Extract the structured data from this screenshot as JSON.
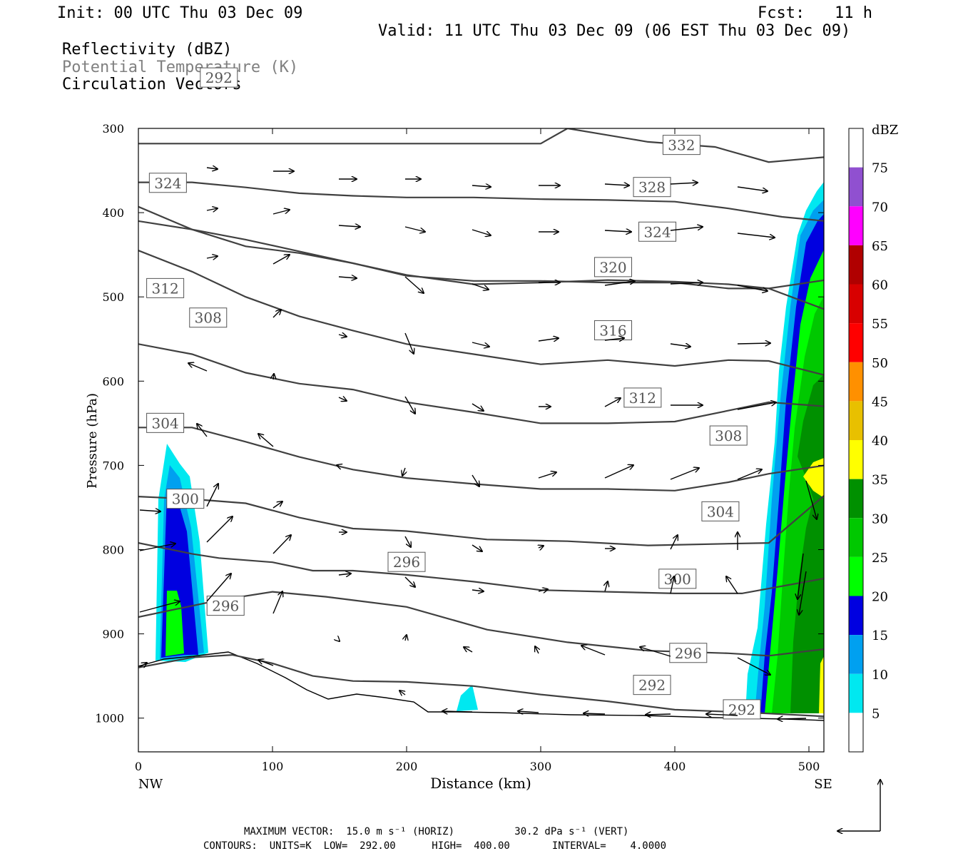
{
  "header": {
    "init": "Init: 00 UTC Thu 03 Dec 09",
    "fcst_label": "Fcst:",
    "fcst_value": "11 h",
    "valid": "Valid: 11 UTC Thu 03 Dec 09 (06 EST Thu 03 Dec 09)",
    "fields": [
      {
        "label": "Reflectivity (dBZ)",
        "color": "#000000"
      },
      {
        "label": "Potential Temperature (K)",
        "color": "#808080"
      },
      {
        "label": "Circulation Vectors",
        "color": "#000000"
      }
    ]
  },
  "chart_data": {
    "type": "cross-section contour",
    "xlabel": "Distance (km)",
    "ylabel": "Pressure (hPa)",
    "xlim": [
      0,
      512
    ],
    "ylim": [
      1040,
      300
    ],
    "x_ticks": [
      "0",
      "100",
      "200",
      "300",
      "400",
      "500"
    ],
    "y_ticks": [
      "300",
      "400",
      "500",
      "600",
      "700",
      "800",
      "900",
      "1000"
    ],
    "x_end_labels": {
      "left": "NW",
      "right": "SE"
    },
    "colorbar": {
      "title": "dBZ",
      "levels": [
        "5",
        "10",
        "15",
        "20",
        "25",
        "30",
        "35",
        "40",
        "45",
        "50",
        "55",
        "60",
        "65",
        "70",
        "75"
      ],
      "colors": [
        "#ffffff",
        "#00e8f0",
        "#00a0f0",
        "#0000e0",
        "#00ff00",
        "#00c800",
        "#009000",
        "#ffff00",
        "#e8c000",
        "#ff9000",
        "#ff0000",
        "#d80000",
        "#b00000",
        "#ff00ff",
        "#9050d0",
        "#ffffff"
      ]
    },
    "theta_contours": [
      {
        "label": "292",
        "points": [
          [
            0,
            940
          ],
          [
            40,
            928
          ],
          [
            70,
            925
          ],
          [
            100,
            935
          ],
          [
            130,
            950
          ],
          [
            160,
            956
          ],
          [
            200,
            957
          ],
          [
            250,
            962
          ],
          [
            300,
            972
          ],
          [
            350,
            980
          ],
          [
            400,
            990
          ],
          [
            450,
            993
          ],
          [
            512,
            998
          ]
        ]
      },
      {
        "label": "296",
        "points": [
          [
            0,
            880
          ],
          [
            30,
            870
          ],
          [
            60,
            860
          ],
          [
            100,
            850
          ],
          [
            140,
            856
          ],
          [
            200,
            868
          ],
          [
            260,
            895
          ],
          [
            320,
            910
          ],
          [
            380,
            920
          ],
          [
            440,
            923
          ],
          [
            470,
            926
          ],
          [
            512,
            918
          ]
        ]
      },
      {
        "label": "300",
        "points": [
          [
            0,
            792
          ],
          [
            40,
            805
          ],
          [
            60,
            810
          ],
          [
            100,
            815
          ],
          [
            130,
            825
          ],
          [
            160,
            825
          ],
          [
            200,
            830
          ],
          [
            250,
            838
          ],
          [
            300,
            848
          ],
          [
            350,
            850
          ],
          [
            400,
            852
          ],
          [
            450,
            852
          ],
          [
            512,
            834
          ]
        ]
      },
      {
        "label": "304",
        "points": [
          [
            0,
            737
          ],
          [
            40,
            740
          ],
          [
            80,
            745
          ],
          [
            120,
            762
          ],
          [
            160,
            775
          ],
          [
            200,
            778
          ],
          [
            260,
            788
          ],
          [
            320,
            790
          ],
          [
            380,
            795
          ],
          [
            440,
            793
          ],
          [
            470,
            792
          ],
          [
            512,
            735
          ]
        ]
      },
      {
        "label": "308",
        "points": [
          [
            0,
            655
          ],
          [
            40,
            655
          ],
          [
            80,
            672
          ],
          [
            120,
            690
          ],
          [
            160,
            705
          ],
          [
            200,
            715
          ],
          [
            250,
            722
          ],
          [
            300,
            728
          ],
          [
            350,
            728
          ],
          [
            400,
            730
          ],
          [
            440,
            720
          ],
          [
            470,
            710
          ],
          [
            512,
            700
          ]
        ]
      },
      {
        "label": "312",
        "points": [
          [
            0,
            556
          ],
          [
            40,
            568
          ],
          [
            80,
            590
          ],
          [
            120,
            603
          ],
          [
            160,
            610
          ],
          [
            200,
            625
          ],
          [
            250,
            637
          ],
          [
            300,
            650
          ],
          [
            350,
            650
          ],
          [
            400,
            648
          ],
          [
            440,
            635
          ],
          [
            470,
            625
          ],
          [
            512,
            630
          ]
        ]
      },
      {
        "label": "316",
        "points": [
          [
            0,
            445
          ],
          [
            40,
            470
          ],
          [
            80,
            500
          ],
          [
            120,
            523
          ],
          [
            160,
            540
          ],
          [
            200,
            556
          ],
          [
            250,
            568
          ],
          [
            300,
            580
          ],
          [
            350,
            575
          ],
          [
            400,
            582
          ],
          [
            440,
            575
          ],
          [
            470,
            576
          ],
          [
            512,
            593
          ]
        ]
      },
      {
        "label": "320",
        "points": [
          [
            0,
            393
          ],
          [
            40,
            420
          ],
          [
            80,
            440
          ],
          [
            120,
            448
          ],
          [
            160,
            460
          ],
          [
            200,
            475
          ],
          [
            250,
            481
          ],
          [
            300,
            481
          ],
          [
            350,
            483
          ],
          [
            400,
            483
          ],
          [
            440,
            490
          ],
          [
            470,
            490
          ],
          [
            512,
            515
          ]
        ]
      },
      {
        "label": "324",
        "points": [
          [
            0,
            410
          ],
          [
            40,
            420
          ],
          [
            80,
            432
          ],
          [
            120,
            446
          ],
          [
            160,
            460
          ],
          [
            200,
            474
          ],
          [
            250,
            485
          ],
          [
            300,
            483
          ],
          [
            350,
            480
          ],
          [
            400,
            482
          ],
          [
            440,
            485
          ],
          [
            470,
            490
          ],
          [
            512,
            480
          ]
        ]
      },
      {
        "label": "328",
        "points": [
          [
            0,
            364
          ],
          [
            40,
            364
          ],
          [
            80,
            370
          ],
          [
            120,
            377
          ],
          [
            160,
            380
          ],
          [
            200,
            382
          ],
          [
            250,
            382
          ],
          [
            300,
            384
          ],
          [
            350,
            385
          ],
          [
            400,
            387
          ],
          [
            440,
            395
          ],
          [
            480,
            405
          ],
          [
            512,
            410
          ]
        ]
      },
      {
        "label": "332",
        "points": [
          [
            0,
            318
          ],
          [
            60,
            318
          ],
          [
            120,
            318
          ],
          [
            200,
            318
          ],
          [
            300,
            318
          ],
          [
            320,
            300
          ],
          [
            380,
            316
          ],
          [
            430,
            322
          ],
          [
            470,
            340
          ],
          [
            512,
            334
          ]
        ]
      }
    ],
    "contour_info": {
      "units": "K",
      "low": "292.00",
      "high": "400.00",
      "interval": "4.0000"
    },
    "max_vector": {
      "horiz": "15.0 m s⁻¹ (HORIZ)",
      "vert": "30.2 dPa s⁻¹ (VERT)"
    }
  },
  "footer": {
    "line1": "MAXIMUM VECTOR:  15.0 m s⁻¹ (HORIZ)          30.2 dPa s⁻¹ (VERT)",
    "line2": "CONTOURS:  UNITS=K  LOW=  292.00      HIGH=  400.00       INTERVAL=    4.0000"
  }
}
